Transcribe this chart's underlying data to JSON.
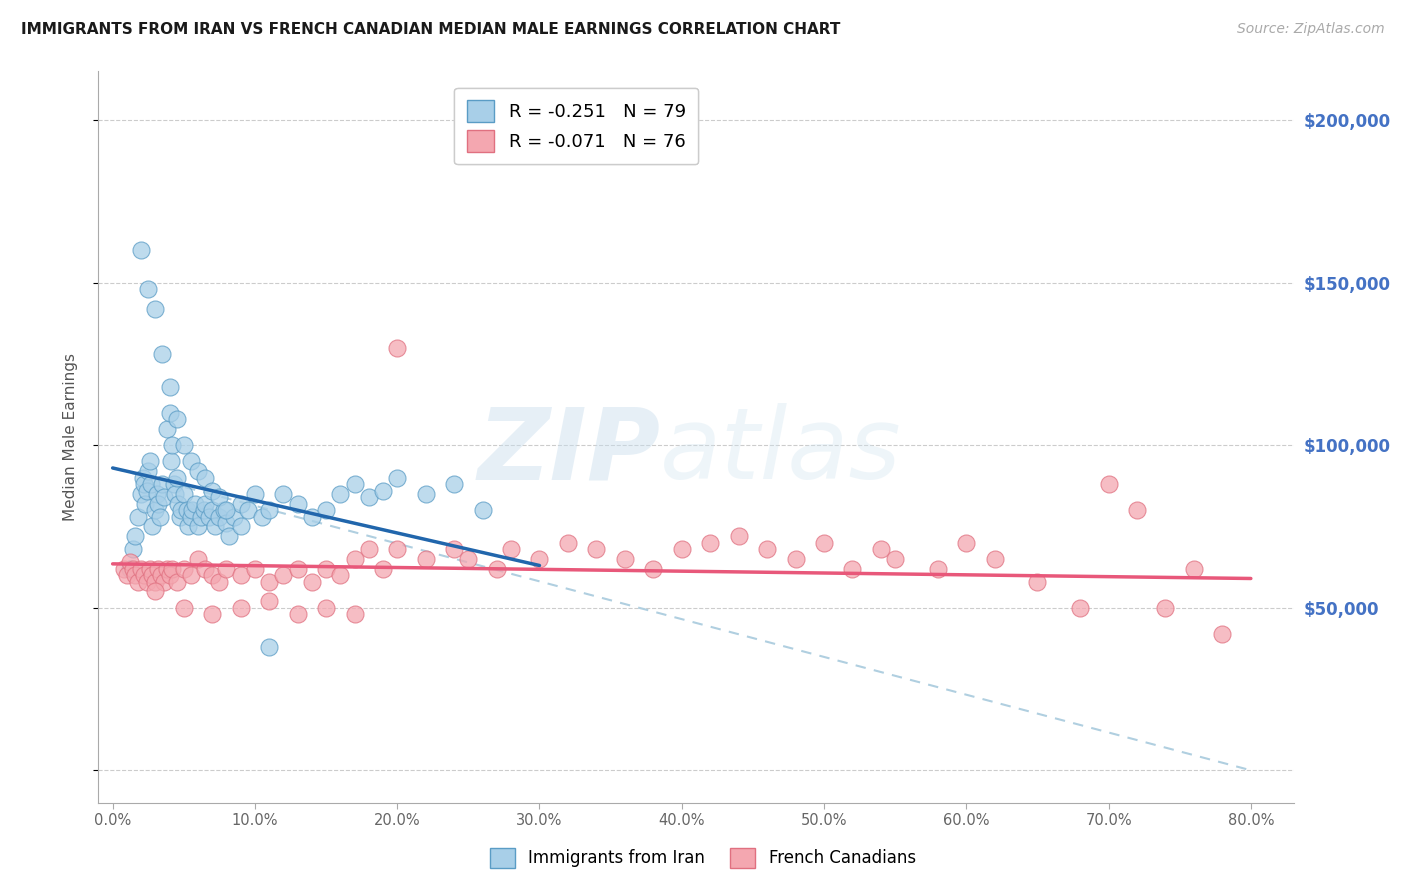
{
  "title": "IMMIGRANTS FROM IRAN VS FRENCH CANADIAN MEDIAN MALE EARNINGS CORRELATION CHART",
  "source": "Source: ZipAtlas.com",
  "ylabel": "Median Male Earnings",
  "xlabel_ticks": [
    "0.0%",
    "10.0%",
    "20.0%",
    "30.0%",
    "40.0%",
    "50.0%",
    "60.0%",
    "70.0%",
    "80.0%"
  ],
  "xlabel_vals": [
    0.0,
    10.0,
    20.0,
    30.0,
    40.0,
    50.0,
    60.0,
    70.0,
    80.0
  ],
  "ytick_vals": [
    0,
    50000,
    100000,
    150000,
    200000
  ],
  "ytick_labels": [
    "",
    "$50,000",
    "$100,000",
    "$150,000",
    "$200,000"
  ],
  "ylim": [
    -10000,
    215000
  ],
  "xlim": [
    -1,
    83
  ],
  "legend1_label": "R = -0.251   N = 79",
  "legend2_label": "R = -0.071   N = 76",
  "legend_bottom1": "Immigrants from Iran",
  "legend_bottom2": "French Canadians",
  "blue_color": "#a8cfe8",
  "pink_color": "#f4a7b0",
  "trendline_blue": "#2166ac",
  "trendline_pink": "#e8587a",
  "trendline_dashed": "#b0cfe0",
  "watermark_zip": "ZIP",
  "watermark_atlas": "atlas",
  "blue_scatter_x": [
    1.2,
    1.4,
    1.6,
    1.8,
    2.0,
    2.1,
    2.2,
    2.3,
    2.4,
    2.5,
    2.6,
    2.7,
    2.8,
    3.0,
    3.1,
    3.2,
    3.3,
    3.5,
    3.6,
    3.8,
    4.0,
    4.1,
    4.2,
    4.3,
    4.4,
    4.5,
    4.6,
    4.7,
    4.8,
    5.0,
    5.2,
    5.3,
    5.5,
    5.6,
    5.8,
    6.0,
    6.2,
    6.4,
    6.5,
    6.8,
    7.0,
    7.2,
    7.5,
    7.8,
    8.0,
    8.2,
    8.5,
    9.0,
    9.5,
    10.0,
    10.5,
    11.0,
    12.0,
    13.0,
    14.0,
    15.0,
    16.0,
    17.0,
    18.0,
    19.0,
    20.0,
    22.0,
    24.0,
    26.0,
    2.0,
    2.5,
    3.0,
    3.5,
    4.0,
    4.5,
    5.0,
    5.5,
    6.0,
    6.5,
    7.0,
    7.5,
    8.0,
    9.0,
    11.0
  ],
  "blue_scatter_y": [
    62000,
    68000,
    72000,
    78000,
    85000,
    90000,
    88000,
    82000,
    86000,
    92000,
    95000,
    88000,
    75000,
    80000,
    85000,
    82000,
    78000,
    88000,
    84000,
    105000,
    110000,
    95000,
    100000,
    88000,
    85000,
    90000,
    82000,
    78000,
    80000,
    85000,
    80000,
    75000,
    78000,
    80000,
    82000,
    75000,
    78000,
    80000,
    82000,
    78000,
    80000,
    75000,
    78000,
    80000,
    76000,
    72000,
    78000,
    82000,
    80000,
    85000,
    78000,
    80000,
    85000,
    82000,
    78000,
    80000,
    85000,
    88000,
    84000,
    86000,
    90000,
    85000,
    88000,
    80000,
    160000,
    148000,
    142000,
    128000,
    118000,
    108000,
    100000,
    95000,
    92000,
    90000,
    86000,
    84000,
    80000,
    75000,
    38000
  ],
  "pink_scatter_x": [
    0.8,
    1.0,
    1.2,
    1.4,
    1.6,
    1.8,
    2.0,
    2.2,
    2.4,
    2.6,
    2.8,
    3.0,
    3.2,
    3.4,
    3.6,
    3.8,
    4.0,
    4.2,
    4.5,
    5.0,
    5.5,
    6.0,
    6.5,
    7.0,
    7.5,
    8.0,
    9.0,
    10.0,
    11.0,
    12.0,
    13.0,
    14.0,
    15.0,
    16.0,
    17.0,
    18.0,
    19.0,
    20.0,
    22.0,
    24.0,
    25.0,
    27.0,
    28.0,
    30.0,
    32.0,
    34.0,
    36.0,
    38.0,
    40.0,
    42.0,
    44.0,
    46.0,
    48.0,
    50.0,
    52.0,
    54.0,
    55.0,
    58.0,
    60.0,
    62.0,
    65.0,
    68.0,
    70.0,
    72.0,
    74.0,
    76.0,
    78.0,
    3.0,
    5.0,
    7.0,
    9.0,
    11.0,
    13.0,
    15.0,
    17.0,
    20.0
  ],
  "pink_scatter_y": [
    62000,
    60000,
    64000,
    62000,
    60000,
    58000,
    62000,
    60000,
    58000,
    62000,
    60000,
    58000,
    62000,
    60000,
    58000,
    62000,
    60000,
    62000,
    58000,
    62000,
    60000,
    65000,
    62000,
    60000,
    58000,
    62000,
    60000,
    62000,
    58000,
    60000,
    62000,
    58000,
    62000,
    60000,
    65000,
    68000,
    62000,
    68000,
    65000,
    68000,
    65000,
    62000,
    68000,
    65000,
    70000,
    68000,
    65000,
    62000,
    68000,
    70000,
    72000,
    68000,
    65000,
    70000,
    62000,
    68000,
    65000,
    62000,
    70000,
    65000,
    58000,
    50000,
    88000,
    80000,
    50000,
    62000,
    42000,
    55000,
    50000,
    48000,
    50000,
    52000,
    48000,
    50000,
    48000,
    130000
  ],
  "blue_trend_x": [
    0,
    30
  ],
  "blue_trend_y": [
    93000,
    63000
  ],
  "pink_trend_x": [
    0,
    80
  ],
  "pink_trend_y": [
    63500,
    59000
  ],
  "dashed_trend_x": [
    0,
    80
  ],
  "dashed_trend_y": [
    93000,
    0
  ]
}
